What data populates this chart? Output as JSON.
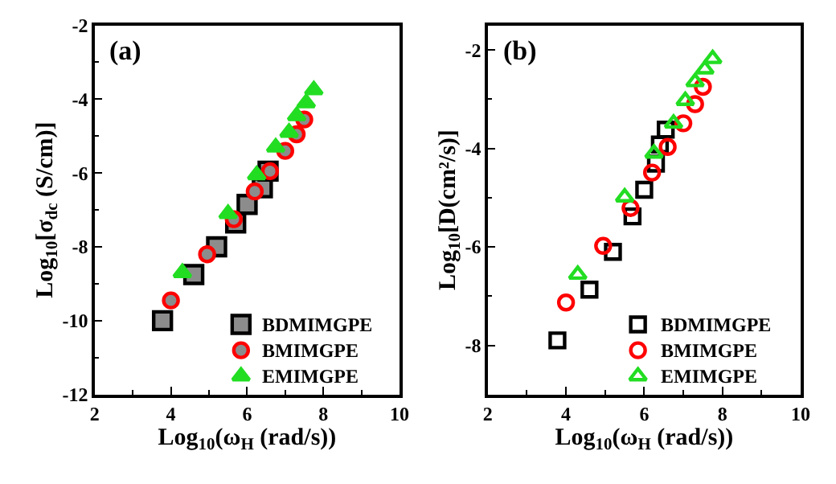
{
  "chart_data": [
    {
      "type": "scatter",
      "xlabel": "Log$_{10}$(ω$_{H}$ (rad/s))",
      "ylabel": "Log$_{10}$[σ$_{dc}$ (S/cm)]",
      "annotations": [
        "(a)"
      ],
      "xlim": [
        2,
        10
      ],
      "xticks": [
        2,
        4,
        6,
        8,
        10
      ],
      "ylim": [
        -12,
        -2
      ],
      "yticks": [
        -12,
        -10,
        -8,
        -6,
        -4,
        -2
      ],
      "legend": "bottom right",
      "series": [
        {
          "name": "BDMIMGPE",
          "color": "#000000",
          "marker": "square",
          "x": [
            3.78,
            4.6,
            5.2,
            5.7,
            6.0,
            6.4,
            6.55
          ],
          "values": [
            -10.0,
            -8.75,
            -8.0,
            -7.35,
            -6.85,
            -6.4,
            -5.95
          ]
        },
        {
          "name": "BMIMGPE",
          "color": "#ff0000",
          "marker": "circle",
          "x": [
            4.0,
            4.95,
            5.65,
            6.2,
            6.6,
            7.0,
            7.3,
            7.5
          ],
          "values": [
            -9.45,
            -8.2,
            -7.25,
            -6.5,
            -5.95,
            -5.4,
            -4.95,
            -4.55
          ]
        },
        {
          "name": "EMIMGPE",
          "color": "#22dd22",
          "marker": "triangle",
          "x": [
            4.3,
            5.5,
            6.25,
            6.75,
            7.1,
            7.3,
            7.55,
            7.75
          ],
          "values": [
            -8.7,
            -7.1,
            -6.05,
            -5.3,
            -4.9,
            -4.45,
            -4.1,
            -3.75
          ]
        }
      ]
    },
    {
      "type": "scatter",
      "xlabel": "Log$_{10}$(ω$_{H}$ (rad/s))",
      "ylabel": "Log$_{10}$[D(cm²/s)]",
      "annotations": [
        "(b)"
      ],
      "xlim": [
        2,
        10
      ],
      "xticks": [
        2,
        4,
        6,
        8,
        10
      ],
      "ylim": [
        -9,
        -1.5
      ],
      "yticks": [
        -8,
        -6,
        -4,
        -2
      ],
      "legend": "bottom right",
      "series": [
        {
          "name": "BDMIMGPE",
          "color": "#000000",
          "marker": "square",
          "x": [
            3.78,
            4.6,
            5.2,
            5.7,
            6.0,
            6.3,
            6.4,
            6.55
          ],
          "values": [
            -7.9,
            -6.87,
            -6.1,
            -5.38,
            -4.84,
            -4.31,
            -3.92,
            -3.62
          ]
        },
        {
          "name": "BMIMGPE",
          "color": "#ff0000",
          "marker": "circle",
          "x": [
            4.0,
            4.95,
            5.65,
            6.2,
            6.6,
            7.0,
            7.3,
            7.5
          ],
          "values": [
            -7.13,
            -5.98,
            -5.21,
            -4.49,
            -3.97,
            -3.49,
            -3.1,
            -2.75
          ]
        },
        {
          "name": "EMIMGPE",
          "color": "#22dd22",
          "marker": "triangle",
          "x": [
            4.3,
            5.5,
            6.25,
            6.75,
            7.05,
            7.3,
            7.55,
            7.75
          ],
          "values": [
            -6.56,
            -4.99,
            -4.1,
            -3.49,
            -3.03,
            -2.65,
            -2.39,
            -2.18
          ]
        }
      ]
    }
  ]
}
